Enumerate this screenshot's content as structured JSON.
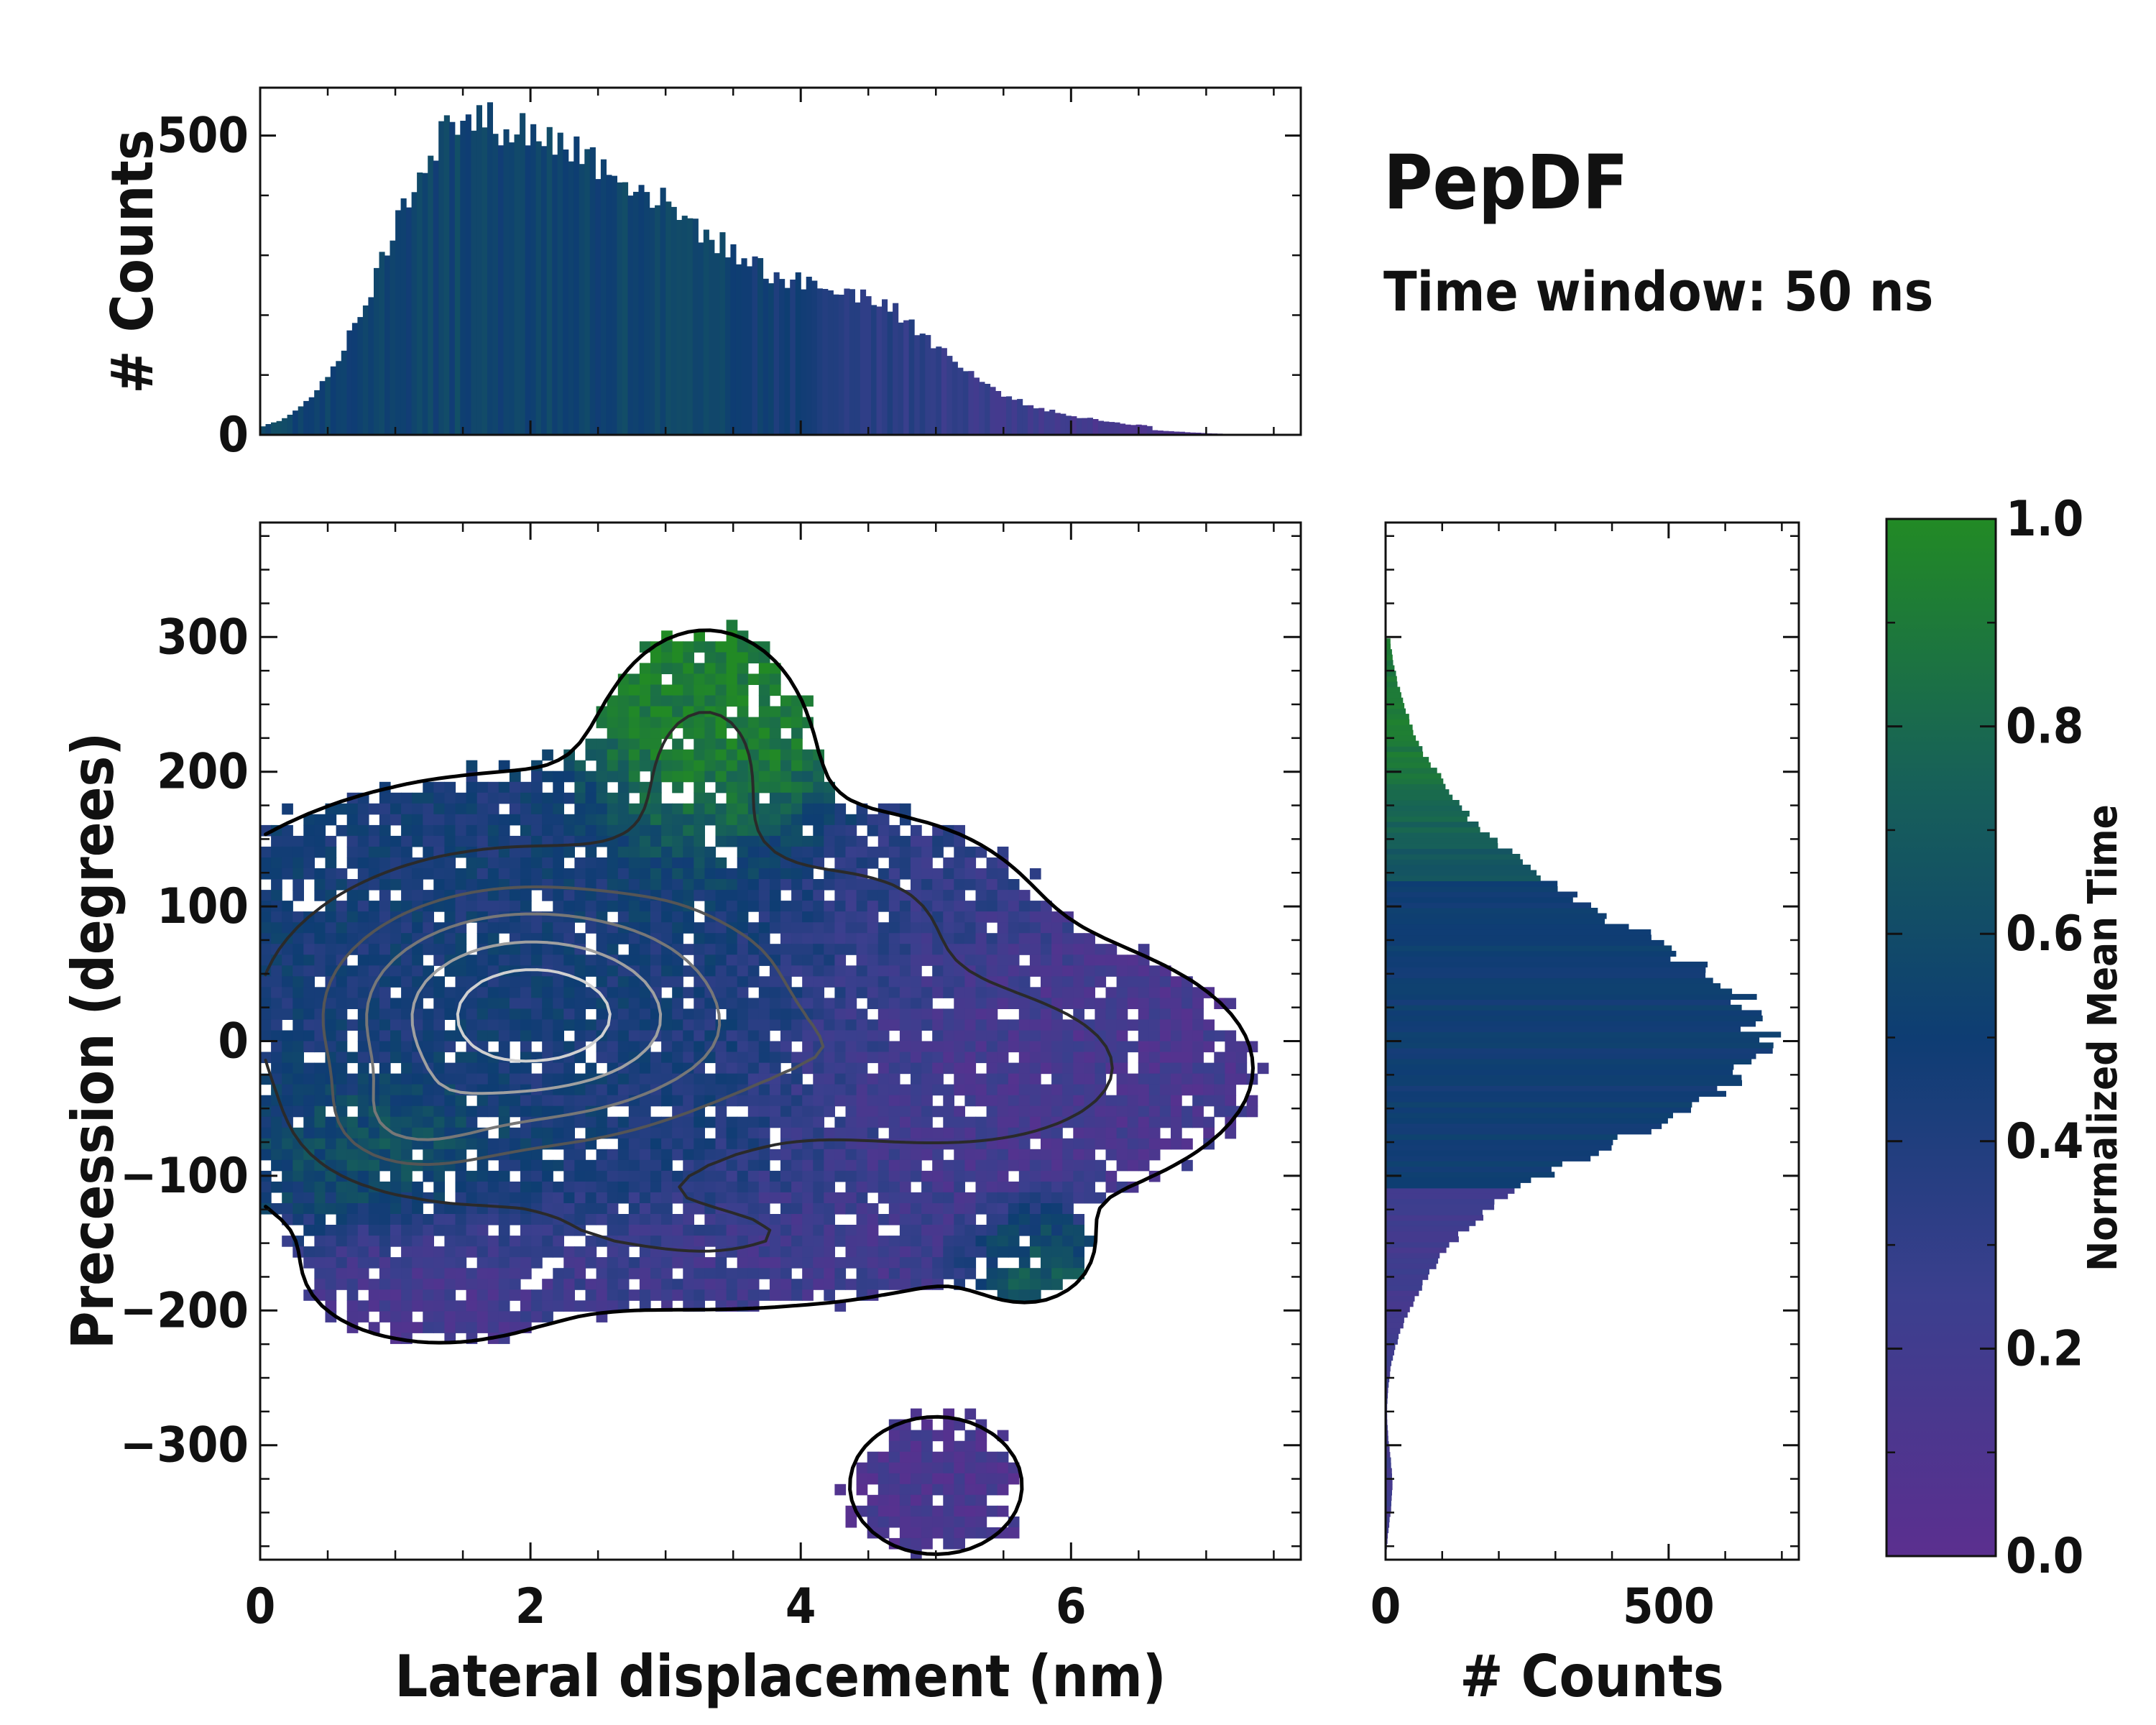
{
  "chart_data": {
    "type": "heatmap",
    "title": "PepDF",
    "subtitle": "Time window: 50 ns",
    "main": {
      "xlabel": "Lateral displacement (nm)",
      "ylabel": "Precession (degrees)",
      "xlim": [
        0,
        7.7
      ],
      "ylim": [
        -385,
        385
      ],
      "xticks": [
        0,
        2,
        4,
        6
      ],
      "yticks": [
        300,
        200,
        100,
        0,
        -100,
        -200,
        -300
      ],
      "ytick_labels": [
        "300",
        "200",
        "100",
        "0",
        "−100",
        "−200",
        "−300"
      ],
      "clusters": [
        {
          "x": 2.0,
          "y": 20,
          "sx": 1.3,
          "sy": 80,
          "w": 1.0,
          "t": 0.45
        },
        {
          "x": 3.3,
          "y": 210,
          "sx": 0.45,
          "sy": 55,
          "w": 0.35,
          "t": 0.95
        },
        {
          "x": 5.3,
          "y": -20,
          "sx": 1.1,
          "sy": 55,
          "w": 0.45,
          "t": 0.15
        },
        {
          "x": 1.3,
          "y": -180,
          "sx": 0.6,
          "sy": 30,
          "w": 0.2,
          "t": 0.12
        },
        {
          "x": 3.5,
          "y": -150,
          "sx": 1.2,
          "sy": 30,
          "w": 0.25,
          "t": 0.18
        },
        {
          "x": 5.0,
          "y": -330,
          "sx": 0.5,
          "sy": 40,
          "w": 0.18,
          "t": 0.12
        },
        {
          "x": 1.0,
          "y": -70,
          "sx": 0.5,
          "sy": 30,
          "w": 0.25,
          "t": 0.88
        },
        {
          "x": 4.5,
          "y": 100,
          "sx": 0.7,
          "sy": 40,
          "w": 0.25,
          "t": 0.3
        },
        {
          "x": 5.7,
          "y": -160,
          "sx": 0.3,
          "sy": 25,
          "w": 0.15,
          "t": 0.85
        }
      ]
    },
    "top_hist": {
      "ylabel": "# Counts",
      "ylim": [
        0,
        580
      ],
      "yticks": [
        0,
        500
      ],
      "bin_width": 0.04,
      "peak_x": 1.5,
      "peak_value": 525,
      "shoulder_x": 4.6,
      "shoulder_value": 180
    },
    "right_hist": {
      "xlabel": "# Counts",
      "xlim": [
        0,
        730
      ],
      "xticks": [
        0,
        500
      ],
      "bin_width": 4,
      "peak_y": 0,
      "peak_value": 665
    },
    "colorbar": {
      "label": "Normalized Mean Time",
      "range": [
        0.0,
        1.0
      ],
      "ticks": [
        "1.0",
        "0.8",
        "0.6",
        "0.4",
        "0.2",
        "0.0"
      ],
      "colors": [
        "#5b2f8f",
        "#3b3f8e",
        "#0e3d73",
        "#176158",
        "#228a25"
      ]
    }
  }
}
